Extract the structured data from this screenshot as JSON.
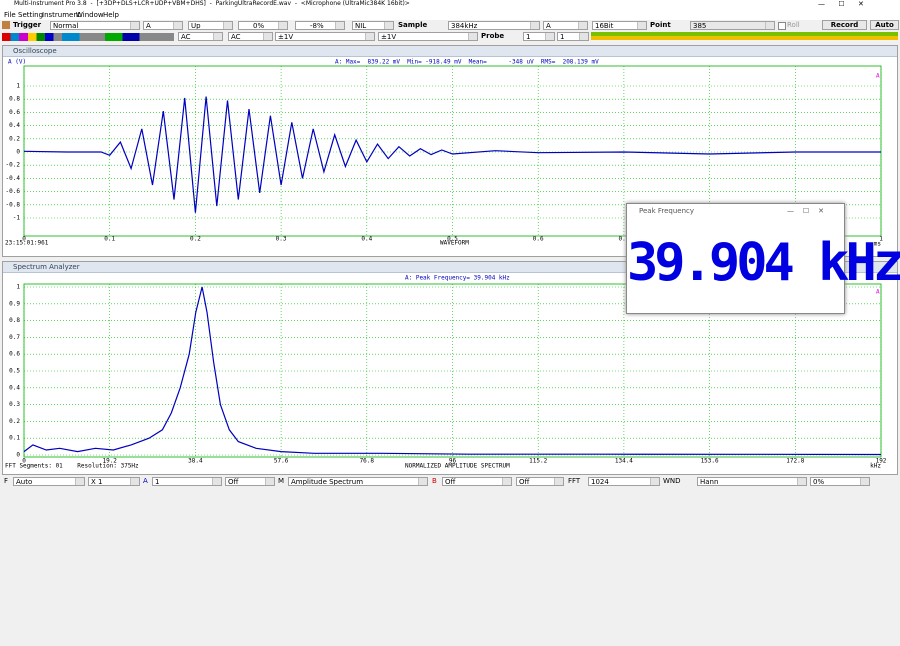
{
  "window": {
    "title": "Multi-Instrument Pro 3.8  -  [+3DP+DLS+LCR+UDP+VBM+DHS]  -  ParkingUltraRecordE.wav  -  <Microphone (UltraMic384K 16bit)>"
  },
  "menu": [
    "File",
    "Setting",
    "Instrument",
    "Window",
    "Help"
  ],
  "toolbar": {
    "trigger": "Trigger",
    "trigger_mode": "Normal",
    "trigger_channel": "A",
    "trigger_edge": "Up",
    "trigger_level": "0%",
    "trigger_delay": "-8%",
    "trigger_filter": "NIL",
    "sample_label": "Sample",
    "sample_rate": "384kHz",
    "channels": "A",
    "bits": "16Bit",
    "point_label": "Point",
    "points": "385",
    "roll": "Roll",
    "record": "Record",
    "auto": "Auto",
    "coupling_a": "AC",
    "coupling_b": "AC",
    "range_a": "±1V",
    "range_b": "±1V",
    "probe_label": "Probe",
    "probe_a": "1",
    "probe_b": "1"
  },
  "oscilloscope": {
    "title": "Oscilloscope",
    "y_label": "A (V)",
    "stats": "A: Max=  839.22 mV  Min= -918.49 mV  Mean=      -348 uV  RMS=  208.139 mV",
    "timestamp": "23:15:01:961",
    "caption": "WAVEFORM",
    "x_unit": "ms",
    "channel_marker": "A"
  },
  "spectrum": {
    "title": "Spectrum Analyzer",
    "subtitle": "A: Peak Frequency= 39.904 kHz",
    "segments": "FFT Segments: 01    Resolution: 375Hz",
    "caption": "NORMALIZED AMPLITUDE SPECTRUM",
    "x_unit": "kHz",
    "channel_marker": "A"
  },
  "peak_window": {
    "title": "Peak Frequency",
    "value": "39.904 kHz"
  },
  "bottom_bar": {
    "f_label": "F",
    "f_mode": "Auto",
    "zoom": "X 1",
    "a_label": "A",
    "a_value": "1",
    "a_off": "Off",
    "m_label": "M",
    "m_mode": "Amplitude Spectrum",
    "b_label": "B",
    "b_off": "Off",
    "b_off2": "Off",
    "fft_label": "FFT",
    "fft_size": "1024",
    "wnd_label": "WND",
    "wnd": "Hann",
    "overlap": "0%"
  },
  "chart_data": [
    {
      "type": "line",
      "color": "#0000c0",
      "grid": true,
      "x": [
        0,
        0.05,
        0.09,
        0.1,
        0.1125,
        0.125,
        0.1375,
        0.15,
        0.1625,
        0.175,
        0.1875,
        0.2,
        0.2125,
        0.225,
        0.2375,
        0.25,
        0.2625,
        0.275,
        0.2875,
        0.3,
        0.3125,
        0.325,
        0.3375,
        0.35,
        0.3625,
        0.375,
        0.3875,
        0.4,
        0.4125,
        0.425,
        0.4375,
        0.45,
        0.4625,
        0.475,
        0.4875,
        0.5,
        0.55,
        0.6,
        0.7,
        0.8,
        0.9,
        1
      ],
      "values": [
        0.01,
        0,
        0,
        -0.05,
        0.15,
        -0.25,
        0.35,
        -0.5,
        0.62,
        -0.72,
        0.82,
        -0.92,
        0.84,
        -0.82,
        0.78,
        -0.72,
        0.65,
        -0.62,
        0.55,
        -0.5,
        0.45,
        -0.4,
        0.35,
        -0.3,
        0.26,
        -0.22,
        0.18,
        -0.15,
        0.12,
        -0.1,
        0.08,
        -0.06,
        0.05,
        -0.04,
        0.03,
        -0.03,
        0.02,
        -0.01,
        0,
        -0.03,
        0,
        0
      ],
      "xlim": [
        0,
        1
      ],
      "ylim": [
        -1,
        1
      ],
      "xticks": [
        0,
        0.1,
        0.2,
        0.3,
        0.4,
        0.5,
        0.6,
        0.7,
        0.8,
        0.9,
        1
      ],
      "yticks": [
        1,
        0.8,
        0.6,
        0.4,
        0.2,
        0,
        -0.2,
        -0.4,
        -0.6,
        -0.8,
        -1
      ]
    },
    {
      "type": "line",
      "color": "#0000c0",
      "grid": true,
      "x": [
        0,
        2,
        5,
        8,
        12,
        16,
        20,
        24,
        28,
        31,
        33,
        35,
        37,
        38.5,
        39.9,
        41,
        42.5,
        44,
        46,
        48,
        52,
        57.6,
        65,
        80,
        100,
        130,
        160,
        192
      ],
      "values": [
        0.02,
        0.06,
        0.03,
        0.04,
        0.02,
        0.04,
        0.03,
        0.06,
        0.1,
        0.15,
        0.25,
        0.4,
        0.6,
        0.85,
        1,
        0.85,
        0.55,
        0.3,
        0.15,
        0.08,
        0.04,
        0.02,
        0.01,
        0.01,
        0.005,
        0.005,
        0.004,
        0.003
      ],
      "xlim": [
        0,
        192
      ],
      "ylim": [
        0,
        1
      ],
      "xticks": [
        0,
        19.2,
        38.4,
        57.6,
        76.8,
        96,
        115.2,
        134.4,
        153.6,
        172.8,
        192
      ],
      "yticks": [
        1,
        0.9,
        0.8,
        0.7,
        0.6,
        0.5,
        0.4,
        0.3,
        0.2,
        0.1,
        0
      ]
    }
  ]
}
